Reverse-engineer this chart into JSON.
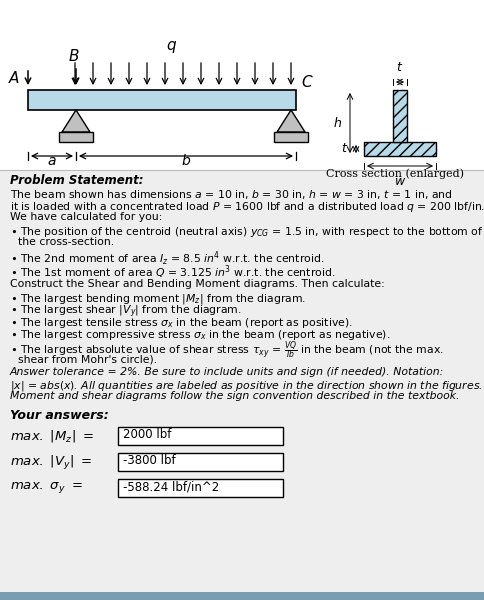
{
  "bg_color": "#ffffff",
  "beam_color": "#b8d9e8",
  "support_color": "#c0c0c0",
  "gray_bg": "#eeeeee",
  "blue_bar": "#7a9cb0",
  "answer1_value": "2000 lbf",
  "answer2_value": "-3800 lbf",
  "answer3_value": "-588.24 lbf/in^2",
  "fig_w": 4.84,
  "fig_h": 6.0,
  "dpi": 100
}
